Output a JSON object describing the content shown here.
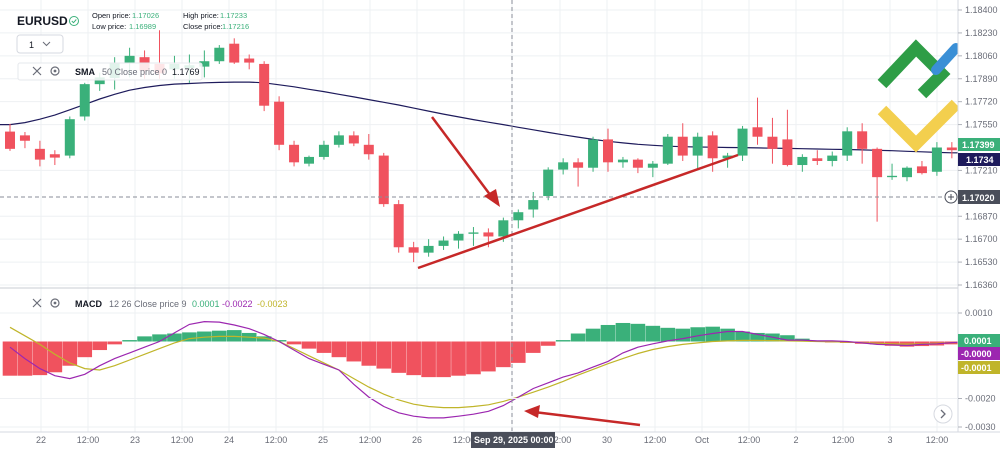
{
  "header": {
    "symbol": "EURUSD",
    "open_label": "Open price:",
    "open_value": "1.17026",
    "high_label": "High price:",
    "high_value": "1.17233",
    "low_label": "Low price:",
    "low_value": "1.16989",
    "close_label": "Close price:",
    "close_value": "1.17216",
    "interval": "1"
  },
  "sma": {
    "label": "SMA",
    "params": "50 Close price 0",
    "value": "1.1769",
    "color": "#1e1b5c"
  },
  "macd": {
    "label": "MACD",
    "params": "12 26 Close price 9",
    "v1": "0.0001",
    "v2": "-0.0022",
    "v3": "-0.0023",
    "v1_color": "#3ab07a",
    "v2_color": "#9c27b0",
    "v3_color": "#c0b52a"
  },
  "price_tags": [
    {
      "text": "1.17399",
      "color": "#3ab07a"
    },
    {
      "text": "1.1734",
      "color": "#1e1b5c"
    },
    {
      "text": "1.17020",
      "color": "#4a4e5a"
    }
  ],
  "macd_tags": [
    {
      "text": "0.0001",
      "color": "#3ab07a"
    },
    {
      "text": "-0.0000",
      "color": "#9c27b0"
    },
    {
      "text": "-0.0001",
      "color": "#c0b52a"
    }
  ],
  "crosshair_label": "Sep 29, 2025 00:00",
  "colors": {
    "bull": "#3ab07a",
    "bear": "#f0525e",
    "arrow": "#c62828",
    "grid": "#eef0f3",
    "crosshair": "#8a8e98",
    "logo_green": "#2e9d46",
    "logo_yellow": "#f3cf4e",
    "logo_blue": "#3a8fd6"
  },
  "chart_data": {
    "type": "candlestick",
    "symbol": "EURUSD",
    "interval": "12h",
    "y_ticks": [
      "1.18400",
      "1.18230",
      "1.18060",
      "1.17890",
      "1.17720",
      "1.17550",
      "1.17210",
      "1.16870",
      "1.16700",
      "1.16530",
      "1.16360"
    ],
    "y_tick_values": [
      1.184,
      1.1823,
      1.1806,
      1.1789,
      1.1772,
      1.1755,
      1.1721,
      1.1687,
      1.167,
      1.1653,
      1.1636
    ],
    "ylim": [
      1.1636,
      1.1845
    ],
    "x_ticks": [
      "22",
      "12:00",
      "23",
      "12:00",
      "24",
      "12:00",
      "25",
      "12:00",
      "26",
      "12:00",
      "29",
      "12:00",
      "30",
      "12:00",
      "Oct",
      "12:00",
      "2",
      "12:00",
      "3",
      "12:00"
    ],
    "candles": [
      {
        "o": 1.17498,
        "h": 1.17555,
        "l": 1.17355,
        "c": 1.1737
      },
      {
        "o": 1.1747,
        "h": 1.17495,
        "l": 1.17375,
        "c": 1.1743
      },
      {
        "o": 1.1737,
        "h": 1.1743,
        "l": 1.1724,
        "c": 1.1729
      },
      {
        "o": 1.1733,
        "h": 1.1736,
        "l": 1.1725,
        "c": 1.17305
      },
      {
        "o": 1.1732,
        "h": 1.1761,
        "l": 1.173,
        "c": 1.1759
      },
      {
        "o": 1.1761,
        "h": 1.1786,
        "l": 1.1758,
        "c": 1.1785
      },
      {
        "o": 1.1785,
        "h": 1.17935,
        "l": 1.178,
        "c": 1.179
      },
      {
        "o": 1.17895,
        "h": 1.1805,
        "l": 1.1781,
        "c": 1.1801
      },
      {
        "o": 1.1801,
        "h": 1.1812,
        "l": 1.179,
        "c": 1.1806
      },
      {
        "o": 1.1805,
        "h": 1.181,
        "l": 1.1789,
        "c": 1.1795
      },
      {
        "o": 1.18,
        "h": 1.1825,
        "l": 1.1789,
        "c": 1.1793
      },
      {
        "o": 1.1796,
        "h": 1.1806,
        "l": 1.1789,
        "c": 1.18
      },
      {
        "o": 1.1797,
        "h": 1.1807,
        "l": 1.1786,
        "c": 1.1799
      },
      {
        "o": 1.1798,
        "h": 1.181,
        "l": 1.179,
        "c": 1.1802
      },
      {
        "o": 1.1802,
        "h": 1.1814,
        "l": 1.18,
        "c": 1.1812
      },
      {
        "o": 1.1815,
        "h": 1.1819,
        "l": 1.18,
        "c": 1.1801
      },
      {
        "o": 1.1804,
        "h": 1.1807,
        "l": 1.1796,
        "c": 1.1801
      },
      {
        "o": 1.18,
        "h": 1.1802,
        "l": 1.1765,
        "c": 1.1769
      },
      {
        "o": 1.1772,
        "h": 1.1776,
        "l": 1.1736,
        "c": 1.174
      },
      {
        "o": 1.174,
        "h": 1.1743,
        "l": 1.1724,
        "c": 1.1727
      },
      {
        "o": 1.1726,
        "h": 1.1732,
        "l": 1.1724,
        "c": 1.1731
      },
      {
        "o": 1.1731,
        "h": 1.1743,
        "l": 1.1729,
        "c": 1.174
      },
      {
        "o": 1.174,
        "h": 1.175,
        "l": 1.1738,
        "c": 1.1747
      },
      {
        "o": 1.1747,
        "h": 1.175,
        "l": 1.1739,
        "c": 1.1741
      },
      {
        "o": 1.174,
        "h": 1.1748,
        "l": 1.1729,
        "c": 1.1733
      },
      {
        "o": 1.1732,
        "h": 1.1734,
        "l": 1.1694,
        "c": 1.1696
      },
      {
        "o": 1.1696,
        "h": 1.1699,
        "l": 1.166,
        "c": 1.1664
      },
      {
        "o": 1.1664,
        "h": 1.1668,
        "l": 1.1653,
        "c": 1.166
      },
      {
        "o": 1.166,
        "h": 1.167,
        "l": 1.1657,
        "c": 1.1665
      },
      {
        "o": 1.1665,
        "h": 1.1672,
        "l": 1.1662,
        "c": 1.1669
      },
      {
        "o": 1.1669,
        "h": 1.1676,
        "l": 1.1663,
        "c": 1.1674
      },
      {
        "o": 1.1674,
        "h": 1.1679,
        "l": 1.1665,
        "c": 1.1675
      },
      {
        "o": 1.1675,
        "h": 1.1678,
        "l": 1.1664,
        "c": 1.1672
      },
      {
        "o": 1.1672,
        "h": 1.1686,
        "l": 1.1668,
        "c": 1.1684
      },
      {
        "o": 1.1684,
        "h": 1.1692,
        "l": 1.1678,
        "c": 1.169
      },
      {
        "o": 1.1692,
        "h": 1.1705,
        "l": 1.1686,
        "c": 1.1699
      },
      {
        "o": 1.1702,
        "h": 1.17233,
        "l": 1.16989,
        "c": 1.17216
      },
      {
        "o": 1.17216,
        "h": 1.173,
        "l": 1.1718,
        "c": 1.1727
      },
      {
        "o": 1.1727,
        "h": 1.173,
        "l": 1.1709,
        "c": 1.1723
      },
      {
        "o": 1.1723,
        "h": 1.1746,
        "l": 1.172,
        "c": 1.1744
      },
      {
        "o": 1.1744,
        "h": 1.1752,
        "l": 1.172,
        "c": 1.1727
      },
      {
        "o": 1.1727,
        "h": 1.1731,
        "l": 1.1723,
        "c": 1.1729
      },
      {
        "o": 1.1729,
        "h": 1.173,
        "l": 1.1719,
        "c": 1.1723
      },
      {
        "o": 1.1723,
        "h": 1.1728,
        "l": 1.1716,
        "c": 1.1726
      },
      {
        "o": 1.1726,
        "h": 1.1748,
        "l": 1.1725,
        "c": 1.1746
      },
      {
        "o": 1.1746,
        "h": 1.1756,
        "l": 1.1728,
        "c": 1.1732
      },
      {
        "o": 1.1732,
        "h": 1.1749,
        "l": 1.1721,
        "c": 1.1746
      },
      {
        "o": 1.1747,
        "h": 1.175,
        "l": 1.172,
        "c": 1.173
      },
      {
        "o": 1.173,
        "h": 1.1734,
        "l": 1.1723,
        "c": 1.1732
      },
      {
        "o": 1.1732,
        "h": 1.1754,
        "l": 1.1728,
        "c": 1.1752
      },
      {
        "o": 1.1753,
        "h": 1.1775,
        "l": 1.174,
        "c": 1.1746
      },
      {
        "o": 1.1746,
        "h": 1.176,
        "l": 1.1726,
        "c": 1.1737
      },
      {
        "o": 1.1744,
        "h": 1.1766,
        "l": 1.1724,
        "c": 1.1725
      },
      {
        "o": 1.1725,
        "h": 1.1733,
        "l": 1.172,
        "c": 1.1731
      },
      {
        "o": 1.173,
        "h": 1.1736,
        "l": 1.1725,
        "c": 1.1728
      },
      {
        "o": 1.1728,
        "h": 1.1735,
        "l": 1.1724,
        "c": 1.1732
      },
      {
        "o": 1.1732,
        "h": 1.1753,
        "l": 1.1728,
        "c": 1.175
      },
      {
        "o": 1.175,
        "h": 1.1756,
        "l": 1.1726,
        "c": 1.1737
      },
      {
        "o": 1.1737,
        "h": 1.1738,
        "l": 1.1683,
        "c": 1.1716
      },
      {
        "o": 1.1716,
        "h": 1.1726,
        "l": 1.1714,
        "c": 1.1717
      },
      {
        "o": 1.1716,
        "h": 1.1724,
        "l": 1.1713,
        "c": 1.1723
      },
      {
        "o": 1.1724,
        "h": 1.1728,
        "l": 1.1718,
        "c": 1.1719
      },
      {
        "o": 1.172,
        "h": 1.1742,
        "l": 1.1717,
        "c": 1.1738
      },
      {
        "o": 1.1738,
        "h": 1.1742,
        "l": 1.173,
        "c": 1.1736
      },
      {
        "o": 1.1737,
        "h": 1.1756,
        "l": 1.1733,
        "c": 1.17399
      }
    ],
    "sma_50": [
      1.1755,
      1.17565,
      1.1759,
      1.1762,
      1.1766,
      1.177,
      1.1774,
      1.17775,
      1.17805,
      1.17825,
      1.1784,
      1.1785,
      1.17855,
      1.1786,
      1.17863,
      1.17865,
      1.17865,
      1.1786,
      1.17845,
      1.1783,
      1.17812,
      1.17795,
      1.17775,
      1.17755,
      1.17735,
      1.17715,
      1.17695,
      1.17672,
      1.1765,
      1.17628,
      1.17607,
      1.17587,
      1.17568,
      1.1755,
      1.1753,
      1.17511,
      1.17492,
      1.17474,
      1.17457,
      1.1744,
      1.17426,
      1.17414,
      1.17404,
      1.17396,
      1.1739,
      1.17386,
      1.17384,
      1.17382,
      1.1738,
      1.17379,
      1.17377,
      1.17375,
      1.17373,
      1.17371,
      1.17369,
      1.17367,
      1.17365,
      1.17362,
      1.17359,
      1.17356,
      1.17352,
      1.17348,
      1.17344,
      1.17341,
      1.1734
    ],
    "macd": {
      "params": "12 26 Close price 9",
      "ylim": [
        -0.0032,
        0.0018
      ],
      "y_ticks": [
        "0.0010",
        "-0.0020",
        "-0.0030"
      ],
      "y_tick_values": [
        0.001,
        -0.002,
        -0.003
      ],
      "histogram": [
        -0.0012,
        -0.0012,
        -0.00118,
        -0.00108,
        -0.00085,
        -0.00055,
        -0.0003,
        -0.0001,
        5e-05,
        0.00018,
        0.00025,
        0.00028,
        0.00032,
        0.00035,
        0.00038,
        0.0004,
        0.0003,
        0.00018,
        5e-05,
        -0.0001,
        -0.00025,
        -0.0004,
        -0.00055,
        -0.0007,
        -0.00085,
        -0.00095,
        -0.0011,
        -0.00118,
        -0.00125,
        -0.00125,
        -0.0012,
        -0.00115,
        -0.00105,
        -0.0009,
        -0.00075,
        -0.0004,
        -0.00015,
        5e-05,
        0.00028,
        0.00045,
        0.00058,
        0.00065,
        0.00062,
        0.00055,
        0.00048,
        0.00045,
        0.0005,
        0.00052,
        0.00045,
        0.00035,
        0.0003,
        0.00028,
        0.00022,
        0.0001,
        2e-05,
        -2e-05,
        -5e-05,
        -8e-05,
        -0.0001,
        -0.00015,
        -0.00018,
        -0.00016,
        -0.00014,
        -0.0001,
        -5e-05
      ],
      "macd_line": [
        -0.0002,
        -0.0006,
        -0.00095,
        -0.0012,
        -0.0013,
        -0.00115,
        -0.00085,
        -0.0006,
        -0.0004,
        -0.0002,
        0.0,
        0.0003,
        0.0006,
        0.0007,
        0.00068,
        0.00058,
        0.00045,
        0.00025,
        0.0,
        -0.0003,
        -0.0006,
        -0.0008,
        -0.001,
        -0.0015,
        -0.00195,
        -0.00228,
        -0.0025,
        -0.00262,
        -0.00268,
        -0.00268,
        -0.00262,
        -0.00255,
        -0.00245,
        -0.00225,
        -0.00195,
        -0.00165,
        -0.00145,
        -0.00125,
        -0.0011,
        -0.0009,
        -0.0007,
        -0.0004,
        -0.0002,
        -8e-05,
        2e-05,
        0.0001,
        0.0002,
        0.00028,
        0.00035,
        0.00035,
        0.00025,
        0.00015,
        5e-05,
        5e-05,
        2e-05,
        2e-05,
        0.0,
        -5e-05,
        -0.0001,
        -0.00012,
        -0.00014,
        -0.0001,
        -8e-05,
        -4e-05,
        -1e-05
      ],
      "signal_line": [
        0.0005,
        0.0002,
        -0.0001,
        -0.00045,
        -0.00075,
        -0.00095,
        -0.001,
        -0.00085,
        -0.00065,
        -0.00045,
        -0.00025,
        -5e-05,
        0.0001,
        0.00015,
        0.00018,
        0.00018,
        0.00015,
        0.00012,
        0.0,
        -0.00025,
        -0.0005,
        -0.00075,
        -0.001,
        -0.0013,
        -0.0016,
        -0.00185,
        -0.00205,
        -0.0022,
        -0.00228,
        -0.00232,
        -0.00232,
        -0.00228,
        -0.00222,
        -0.0021,
        -0.00195,
        -0.00178,
        -0.0016,
        -0.0014,
        -0.00118,
        -0.00098,
        -0.00078,
        -0.0006,
        -0.00042,
        -0.00028,
        -0.00018,
        -0.0001,
        -5e-05,
        0.0,
        2e-05,
        4e-05,
        4e-05,
        3e-05,
        2e-05,
        1e-05,
        0.0,
        -1e-05,
        -2e-05,
        -4e-05,
        -6e-05,
        -8e-05,
        -9e-05,
        -8e-05,
        -6e-05,
        -4e-05,
        -2e-05
      ]
    }
  }
}
